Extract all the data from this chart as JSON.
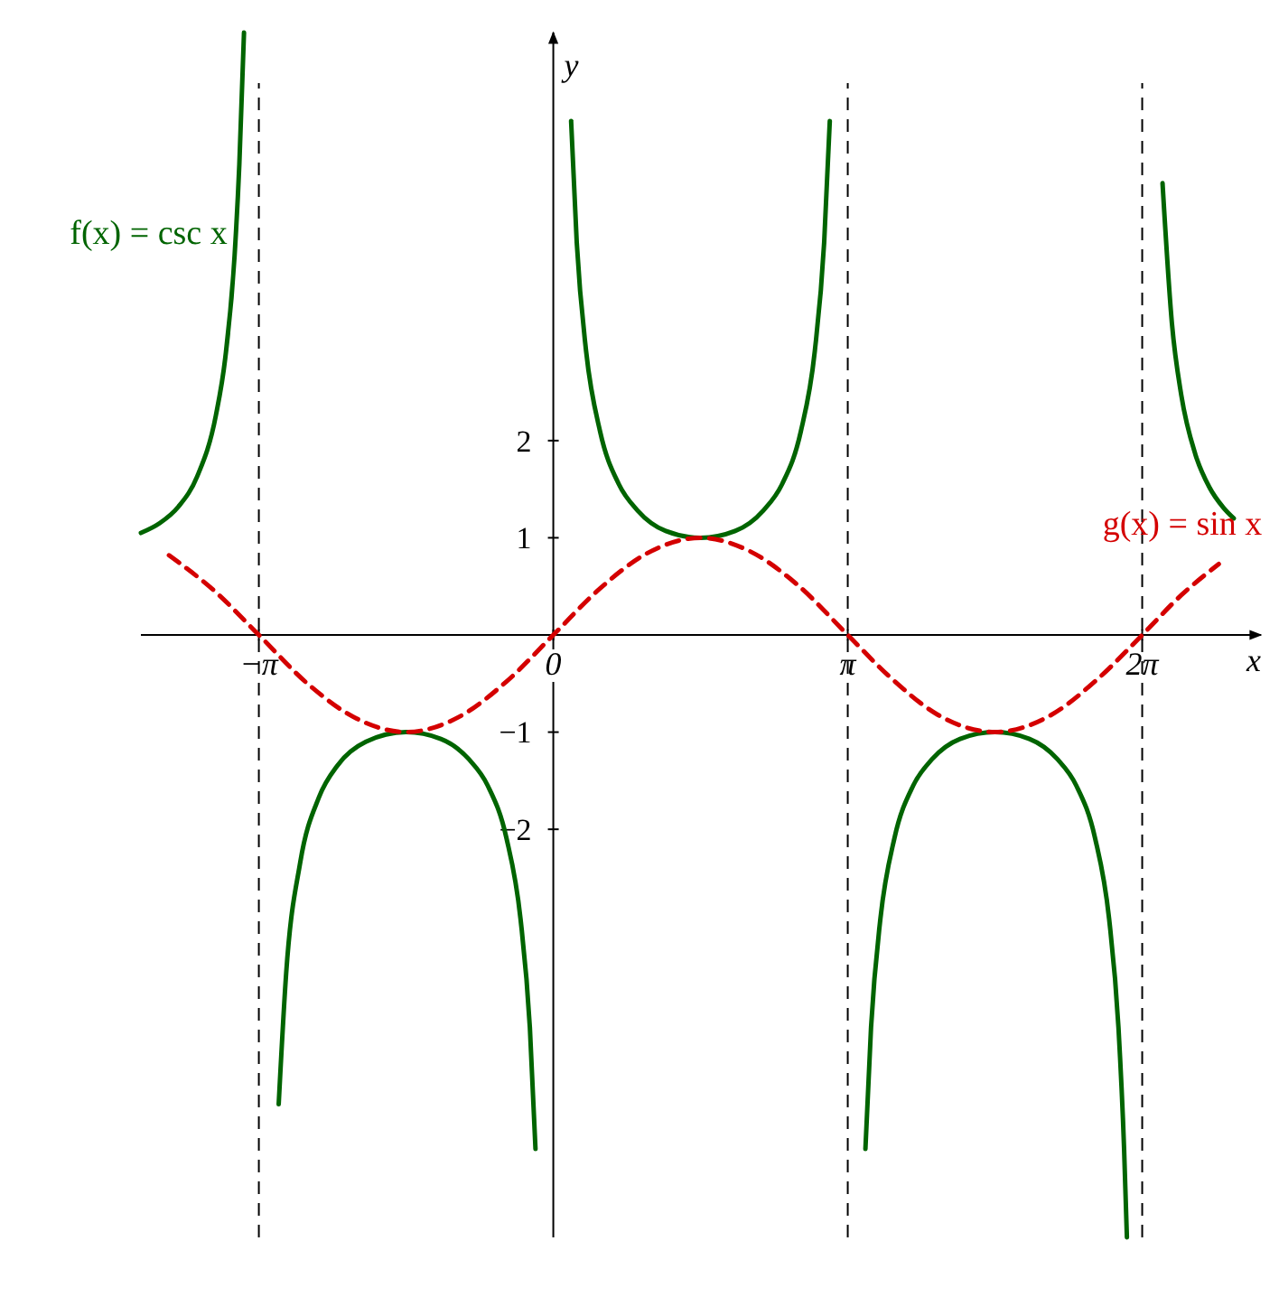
{
  "chart_data": {
    "type": "line",
    "xlabel": "x",
    "ylabel": "y",
    "xlim": [
      -4.4,
      7.55
    ],
    "ylim": [
      -6.2,
      6.2
    ],
    "xticks": [
      {
        "value": -3.1416,
        "label": "−π"
      },
      {
        "value": 0,
        "label": "0"
      },
      {
        "value": 3.1416,
        "label": "π"
      },
      {
        "value": 6.2832,
        "label": "2π"
      }
    ],
    "yticks": [
      {
        "value": -2,
        "label": "−2"
      },
      {
        "value": -1,
        "label": "−1"
      },
      1,
      2
    ],
    "grid": false,
    "series": [
      {
        "color": "#006400",
        "line_style": "solid",
        "x": [
          -4.4,
          -4.2,
          -4.0,
          -3.8,
          -3.6,
          -3.5,
          -3.4,
          -3.35,
          -3.3
        ],
        "values": [
          1.05,
          1.15,
          1.32,
          1.63,
          2.26,
          2.85,
          3.91,
          4.84,
          6.2
        ]
      },
      {
        "color": "#006400",
        "line_style": "solid",
        "x": [
          -2.93,
          -2.85,
          -2.7,
          -2.5,
          -2.3,
          -2.0,
          -1.5708,
          -1.2,
          -0.9,
          -0.7,
          -0.5,
          -0.35,
          -0.25,
          -0.19
        ],
        "values": [
          -4.83,
          -3.48,
          -2.34,
          -1.67,
          -1.34,
          -1.1,
          -1,
          -1.07,
          -1.28,
          -1.55,
          -2.09,
          -2.92,
          -4.04,
          -5.29
        ]
      },
      {
        "color": "#006400",
        "line_style": "solid",
        "x": [
          0.19,
          0.25,
          0.35,
          0.5,
          0.7,
          0.9,
          1.2,
          1.5708,
          1.94,
          2.24,
          2.44,
          2.64,
          2.79,
          2.89,
          2.95
        ],
        "values": [
          5.29,
          4.04,
          2.92,
          2.09,
          1.55,
          1.28,
          1.07,
          1,
          1.07,
          1.28,
          1.55,
          2.09,
          2.92,
          4.04,
          5.29
        ]
      },
      {
        "color": "#006400",
        "line_style": "solid",
        "x": [
          3.33,
          3.39,
          3.49,
          3.64,
          3.84,
          4.04,
          4.34,
          4.7124,
          5.08,
          5.38,
          5.58,
          5.78,
          5.93,
          6.03,
          6.09,
          6.12
        ],
        "values": [
          -5.29,
          -4.04,
          -2.92,
          -2.09,
          -1.55,
          -1.28,
          -1.07,
          -1,
          -1.07,
          -1.28,
          -1.55,
          -2.09,
          -2.92,
          -4.04,
          -5.29,
          -6.2
        ]
      },
      {
        "color": "#006400",
        "line_style": "solid",
        "x": [
          6.5,
          6.6,
          6.7,
          6.85,
          7.0,
          7.15,
          7.26
        ],
        "values": [
          4.65,
          3.21,
          2.47,
          1.86,
          1.52,
          1.31,
          1.2
        ]
      },
      {
        "color": "#d40000",
        "line_style": "dashed",
        "x": [
          -4.1,
          -3.6,
          -3.1416,
          -2.6,
          -2.1,
          -1.5708,
          -1.0,
          -0.5,
          0,
          0.5,
          1.0,
          1.5708,
          2.1,
          2.6,
          3.1416,
          3.6,
          4.1,
          4.7124,
          5.3,
          5.8,
          6.2832,
          6.7,
          7.1
        ],
        "values": [
          0.82,
          0.44,
          0,
          -0.52,
          -0.86,
          -1,
          -0.84,
          -0.48,
          0,
          0.48,
          0.84,
          1,
          0.86,
          0.52,
          0,
          -0.44,
          -0.82,
          -1,
          -0.83,
          -0.46,
          0,
          0.41,
          0.73
        ]
      }
    ],
    "ref_lines": [
      {
        "axis": "x",
        "value": -3.1416,
        "color": "#000000",
        "line_style": "dashed"
      },
      {
        "axis": "x",
        "value": 3.1416,
        "color": "#000000",
        "line_style": "dashed"
      },
      {
        "axis": "x",
        "value": 6.2832,
        "color": "#000000",
        "line_style": "dashed"
      }
    ],
    "annotations": [
      {
        "text": "f(x) = csc x",
        "x": -3.4,
        "y": 3.91
      },
      {
        "text": "g(x) = sin x",
        "x": 7.1,
        "y": 0.73
      }
    ]
  }
}
